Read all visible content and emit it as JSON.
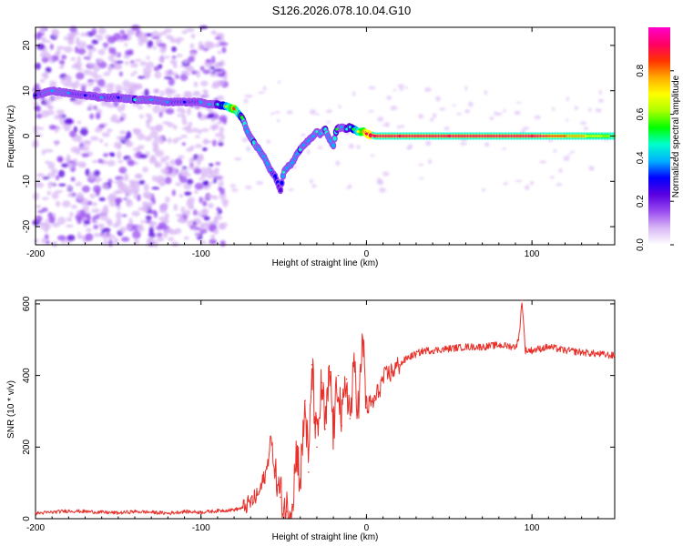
{
  "title": "S126.2026.078.10.04.G10",
  "colors": {
    "snr_line": "#e8302a",
    "spectrum_scale": [
      "#ffffff",
      "#d9b8f5",
      "#9a4cf0",
      "#5a00e0",
      "#0000ff",
      "#00b0ff",
      "#00ffcc",
      "#00ff00",
      "#aaff00",
      "#ffff00",
      "#ffaa00",
      "#ff3300",
      "#ff0066",
      "#ff00cc"
    ]
  },
  "chart_data": [
    {
      "type": "heatmap",
      "name": "spectrogram",
      "xlabel": "Height of straight line (km)",
      "ylabel": "Frequency (Hz)",
      "xlim": [
        -200,
        150
      ],
      "ylim": [
        -24,
        24
      ],
      "x_ticks": [
        "-200",
        "-100",
        "0",
        "100"
      ],
      "y_ticks": [
        "20",
        "10",
        "0",
        "-10",
        "-20"
      ],
      "colorbar_label": "Normalized spectral amplitude",
      "colorbar_range": [
        0,
        1
      ],
      "colorbar_ticks": [
        "0.0",
        "0.2",
        "0.4",
        "0.6",
        "0.8"
      ],
      "ridge": {
        "height_km": [
          -200,
          -190,
          -180,
          -170,
          -160,
          -150,
          -140,
          -130,
          -120,
          -110,
          -100,
          -95,
          -90,
          -85,
          -80,
          -75,
          -72,
          -68,
          -65,
          -62,
          -60,
          -58,
          -55,
          -52,
          -50,
          -48,
          -45,
          -42,
          -40,
          -38,
          -35,
          -32,
          -30,
          -28,
          -25,
          -22,
          -20,
          -18,
          -15,
          -12,
          -10,
          -8,
          -5,
          -2,
          0,
          5,
          20,
          50,
          100,
          150
        ],
        "freq_hz": [
          9,
          10,
          9.5,
          9,
          8.5,
          8.5,
          8,
          8,
          7.5,
          7.5,
          7.5,
          7,
          7,
          6.5,
          6,
          4,
          1,
          -1.5,
          -3,
          -4.5,
          -6,
          -7.5,
          -9,
          -12,
          -8,
          -7,
          -6,
          -4,
          -3,
          -2,
          -1,
          0,
          1,
          0.5,
          1.5,
          -1,
          -2,
          1.5,
          2,
          1.5,
          2,
          1.5,
          1,
          1,
          0.5,
          0,
          0,
          0,
          0,
          0
        ],
        "amplitude": [
          0.3,
          0.4,
          0.35,
          0.3,
          0.35,
          0.3,
          0.45,
          0.4,
          0.35,
          0.3,
          0.35,
          0.4,
          0.45,
          0.6,
          0.85,
          0.5,
          0.35,
          0.45,
          0.4,
          0.35,
          0.4,
          0.35,
          0.3,
          0.25,
          0.45,
          0.4,
          0.35,
          0.35,
          0.45,
          0.35,
          0.4,
          0.4,
          0.45,
          0.4,
          0.45,
          0.4,
          0.4,
          0.5,
          0.4,
          0.45,
          0.45,
          0.55,
          0.7,
          0.8,
          0.92,
          0.95,
          0.95,
          0.95,
          0.95,
          0.6
        ]
      }
    },
    {
      "type": "line",
      "name": "snr",
      "xlabel": "Height of straight line (km)",
      "ylabel": "SNR (10 * v/v)",
      "xlim": [
        -200,
        150
      ],
      "ylim": [
        0,
        610
      ],
      "x_ticks": [
        "-200",
        "-100",
        "0",
        "100"
      ],
      "y_ticks": [
        "600",
        "400",
        "200",
        "0"
      ],
      "series": [
        {
          "name": "SNR",
          "x": [
            -200,
            -190,
            -180,
            -170,
            -160,
            -150,
            -140,
            -130,
            -120,
            -110,
            -100,
            -90,
            -80,
            -75,
            -70,
            -65,
            -60,
            -58,
            -55,
            -52,
            -50,
            -48,
            -45,
            -42,
            -40,
            -37,
            -35,
            -33,
            -30,
            -27,
            -25,
            -22,
            -20,
            -17,
            -15,
            -12,
            -10,
            -7,
            -5,
            -2,
            0,
            5,
            10,
            15,
            20,
            25,
            30,
            35,
            40,
            50,
            60,
            70,
            80,
            90,
            92,
            94,
            96,
            100,
            110,
            120,
            130,
            140,
            150
          ],
          "y": [
            15,
            18,
            22,
            20,
            18,
            16,
            20,
            18,
            15,
            20,
            18,
            22,
            25,
            30,
            45,
            70,
            140,
            230,
            120,
            60,
            30,
            20,
            40,
            200,
            100,
            330,
            130,
            430,
            200,
            380,
            250,
            410,
            240,
            400,
            260,
            390,
            280,
            430,
            300,
            500,
            310,
            330,
            390,
            410,
            430,
            450,
            460,
            470,
            470,
            475,
            480,
            480,
            485,
            480,
            500,
            610,
            470,
            470,
            480,
            470,
            465,
            460,
            455
          ]
        }
      ]
    }
  ]
}
